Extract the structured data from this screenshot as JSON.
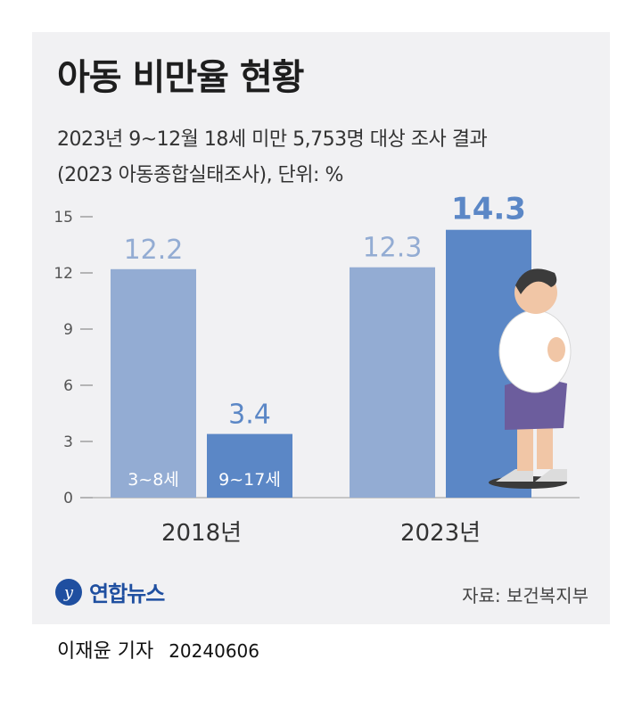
{
  "title": "아동 비만율 현황",
  "subtitle_line1": "2023년 9~12월 18세 미만 5,753명 대상 조사 결과",
  "subtitle_line2": "(2023 아동종합실태조사), 단위: %",
  "logo_text": "연합뉴스",
  "source": "자료: 보건복지부",
  "reporter": "이재윤 기자",
  "date": "20240606",
  "colors": {
    "series_3_8": "#93acd3",
    "series_9_17": "#5b87c6",
    "panel_bg": "#f1f1f3"
  },
  "chart_data": {
    "type": "bar",
    "categories": [
      "2018년",
      "2023년"
    ],
    "series": [
      {
        "name": "3~8세",
        "values": [
          12.2,
          12.3
        ]
      },
      {
        "name": "9~17세",
        "values": [
          3.4,
          14.3
        ]
      }
    ],
    "ylim": [
      0,
      15
    ],
    "yticks": [
      0,
      3,
      6,
      9,
      12,
      15
    ],
    "title": "",
    "xlabel": "",
    "ylabel": "",
    "grid": false
  }
}
